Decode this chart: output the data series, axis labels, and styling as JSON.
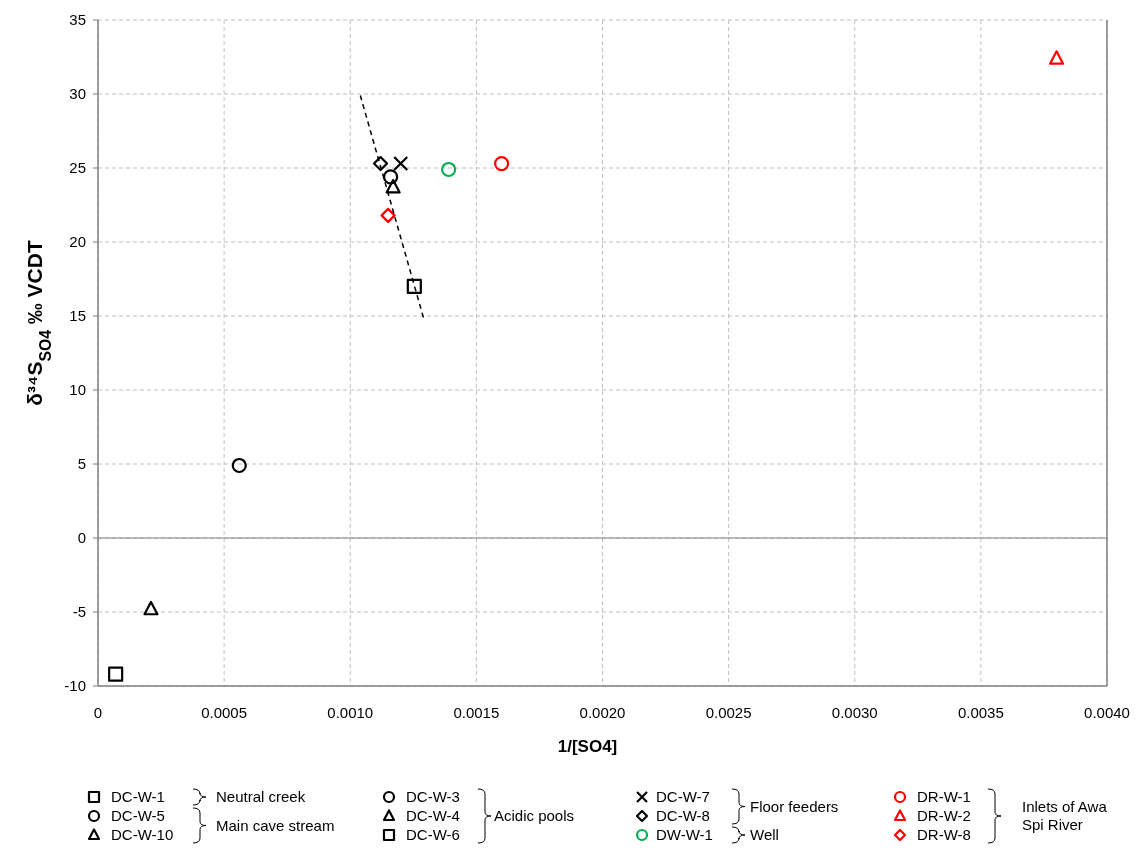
{
  "chart_data": {
    "type": "scatter",
    "xlabel": "1/[SO4]",
    "ylabel": "δ³⁴S$_{SO4}$ ‰ VCDT",
    "xlim": [
      0,
      0.004
    ],
    "ylim": [
      -10,
      35
    ],
    "xticks": [
      0,
      0.0005,
      {
        "value": 0.001,
        "label": "0.0010"
      },
      0.0015,
      {
        "value": 0.002,
        "label": "0.0020"
      },
      0.0025,
      {
        "value": 0.003,
        "label": "0.0030"
      },
      0.0035,
      {
        "value": 0.004,
        "label": "0.0040"
      }
    ],
    "yticks": [
      -10,
      -5,
      0,
      5,
      10,
      15,
      20,
      25,
      30,
      35
    ],
    "grid": true,
    "legend": "bottom",
    "series": [
      {
        "name": "DC-W-1",
        "color": "#000000",
        "marker": "square",
        "x": [
          0.001254
        ],
        "values": [
          17.0
        ]
      },
      {
        "name": "DC-W-5",
        "color": "#000000",
        "marker": "circle",
        "x": [
          0.00116
        ],
        "values": [
          24.4
        ]
      },
      {
        "name": "DC-W-10",
        "color": "#000000",
        "marker": "triangle",
        "x": [
          0.00117
        ],
        "values": [
          23.7
        ]
      },
      {
        "name": "DC-W-3",
        "color": "#000000",
        "marker": "circle",
        "x": [
          0.00056
        ],
        "values": [
          4.9
        ]
      },
      {
        "name": "DC-W-4",
        "color": "#000000",
        "marker": "triangle",
        "x": [
          0.00021
        ],
        "values": [
          -4.8
        ]
      },
      {
        "name": "DC-W-6",
        "color": "#000000",
        "marker": "square",
        "x": [
          7e-05
        ],
        "values": [
          -9.2
        ]
      },
      {
        "name": "DC-W-7",
        "color": "#000000",
        "marker": "cross",
        "x": [
          0.0012
        ],
        "values": [
          25.3
        ]
      },
      {
        "name": "DC-W-8",
        "color": "#000000",
        "marker": "diamond",
        "x": [
          0.00112
        ],
        "values": [
          25.3
        ]
      },
      {
        "name": "DW-W-1",
        "color": "#00b050",
        "marker": "circle",
        "x": [
          0.00139
        ],
        "values": [
          24.9
        ]
      },
      {
        "name": "DR-W-1",
        "color": "#ff0000",
        "marker": "circle",
        "x": [
          0.0016
        ],
        "values": [
          25.3
        ]
      },
      {
        "name": "DR-W-2",
        "color": "#ff0000",
        "marker": "triangle",
        "x": [
          0.0038
        ],
        "values": [
          32.4
        ]
      },
      {
        "name": "DR-W-8",
        "color": "#ff0000",
        "marker": "diamond",
        "x": [
          0.00115
        ],
        "values": [
          21.8
        ]
      },
      {
        "type": "line",
        "color": "#000000",
        "marker": "none",
        "line_style": "dashed",
        "x": [
          0.00104,
          0.00129
        ],
        "values": [
          29.9,
          14.9
        ]
      }
    ],
    "annotations": [
      "Neutral creek",
      "Main cave stream",
      "Acidic pools",
      "Floor feeders",
      "Well",
      "Inlets of Awa Spi River"
    ]
  }
}
